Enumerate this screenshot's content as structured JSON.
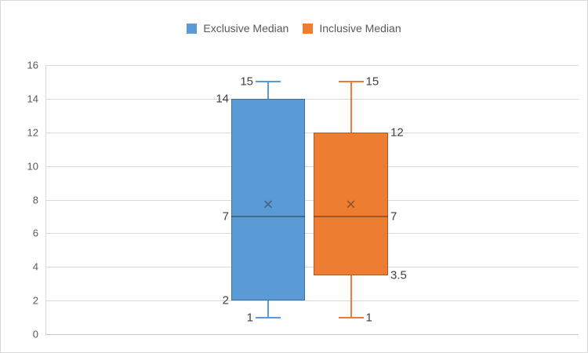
{
  "chart_data": {
    "type": "boxplot",
    "title": "",
    "legend_position": "top",
    "gridlines": true,
    "colors": {
      "background": "#FFFFFF",
      "chart_border": "#D9D9D9",
      "gridline": "#D9D9D9",
      "axis_tick_text": "#595959",
      "data_label_text": "#404040",
      "legend_text": "#595959",
      "blue_series": "#5B9BD5",
      "orange_series": "#ED7D31"
    },
    "y_axis": {
      "min": 0,
      "max": 16,
      "tick_interval": 2,
      "ticks": [
        "0",
        "2",
        "4",
        "6",
        "8",
        "10",
        "12",
        "14",
        "16"
      ]
    },
    "series": [
      {
        "name": "Exclusive Median",
        "color": "#5B9BD5",
        "min": 1,
        "q1": 2,
        "median": 7,
        "q3": 14,
        "max": 15,
        "mean": 7.71,
        "data_labels": [
          "15",
          "14",
          "7",
          "2",
          "1"
        ],
        "label_side": "left"
      },
      {
        "name": "Inclusive Median",
        "color": "#ED7D31",
        "min": 1,
        "q1": 3.5,
        "median": 7,
        "q3": 12,
        "max": 15,
        "mean": 7.71,
        "data_labels": [
          "15",
          "12",
          "7",
          "3.5",
          "1"
        ],
        "label_side": "right"
      }
    ]
  }
}
